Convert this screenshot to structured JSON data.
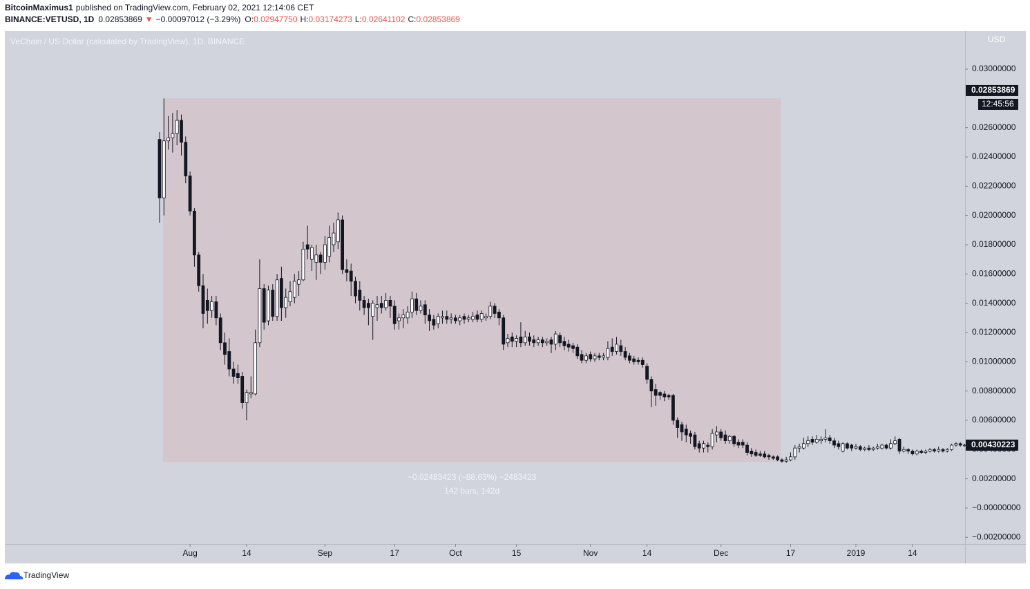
{
  "header": {
    "author": "BitcoinMaximus1",
    "published": "published on TradingView.com, February 02, 2021 12:14:06 CET",
    "symbol": "BINANCE:VETUSD, 1D",
    "last": "0.02853869",
    "arrow": "▼",
    "change": "−0.00097012 (−3.29%)",
    "ohlc": [
      {
        "label": "O:",
        "value": "0.02947750"
      },
      {
        "label": "H:",
        "value": "0.03174273"
      },
      {
        "label": "L:",
        "value": "0.02641102"
      },
      {
        "label": "C:",
        "value": "0.02853869"
      }
    ]
  },
  "chart_data": {
    "type": "candlestick",
    "title": "VeChain / US Dollar (calculated by TradingView), 1D, BINANCE",
    "currency": "USD",
    "categories": [
      null,
      null,
      null,
      null,
      null,
      null,
      null,
      "Aug",
      null,
      null,
      null,
      null,
      null,
      null,
      null,
      null,
      null,
      null,
      null,
      null,
      "14",
      null,
      null,
      null,
      null,
      null,
      null,
      null,
      null,
      null,
      null,
      null,
      null,
      null,
      null,
      null,
      null,
      null,
      "Sep",
      null,
      null,
      null,
      null,
      null,
      null,
      null,
      null,
      null,
      null,
      null,
      null,
      null,
      null,
      null,
      "17",
      null,
      null,
      null,
      null,
      null,
      null,
      null,
      null,
      null,
      null,
      null,
      null,
      null,
      "Oct",
      null,
      null,
      null,
      null,
      null,
      null,
      null,
      null,
      null,
      null,
      null,
      null,
      null,
      "15",
      null,
      null,
      null,
      null,
      null,
      null,
      null,
      null,
      null,
      null,
      null,
      null,
      null,
      null,
      null,
      null,
      "Nov",
      null,
      null,
      null,
      null,
      null,
      null,
      null,
      null,
      null,
      null,
      null,
      null,
      "14",
      null,
      null,
      null,
      null,
      null,
      null,
      null,
      null,
      null,
      null,
      null,
      null,
      null,
      null,
      null,
      null,
      "Dec",
      null,
      null,
      null,
      null,
      null,
      null,
      null,
      null,
      null,
      null,
      null,
      null,
      null,
      null,
      null,
      "17",
      null,
      null,
      null,
      null,
      null,
      null,
      null,
      null,
      null,
      null,
      null,
      null,
      null,
      null,
      "2019",
      null,
      null,
      null,
      null,
      null,
      null,
      null,
      null,
      null,
      null,
      null,
      null,
      "14",
      null,
      null,
      null,
      null,
      null,
      null,
      null,
      null,
      null,
      null,
      null,
      null,
      null
    ],
    "open": [
      0.0252,
      0.0212,
      0.0251,
      0.0253,
      0.0256,
      0.0265,
      0.025,
      0.0227,
      0.0203,
      0.0173,
      0.0152,
      0.0142,
      0.0135,
      0.0141,
      0.013,
      0.0113,
      0.0107,
      0.0095,
      0.0092,
      0.009,
      0.0072,
      0.0078,
      0.0078,
      0.0113,
      0.015,
      0.0128,
      0.0149,
      0.0131,
      0.0157,
      0.0137,
      0.0141,
      0.0144,
      0.0153,
      0.0156,
      0.018,
      0.017,
      0.0168,
      0.0173,
      0.0168,
      0.0172,
      0.018,
      0.0182,
      0.0197,
      0.0163,
      0.0162,
      0.0155,
      0.0149,
      0.0142,
      0.014,
      0.0131,
      0.0137,
      0.014,
      0.0137,
      0.0142,
      0.0138,
      0.0128,
      0.013,
      0.013,
      0.0134,
      0.0143,
      0.0135,
      0.0139,
      0.0132,
      0.0129,
      0.0126,
      0.013,
      0.0131,
      0.0129,
      0.013,
      0.0128,
      0.0131,
      0.0129,
      0.0129,
      0.0132,
      0.0129,
      0.013,
      0.0131,
      0.0138,
      0.0134,
      0.013,
      0.0113,
      0.0117,
      0.0114,
      0.0117,
      0.0113,
      0.0117,
      0.0115,
      0.0113,
      0.0115,
      0.0113,
      0.0115,
      0.0112,
      0.0118,
      0.0114,
      0.0112,
      0.0111,
      0.011,
      0.0105,
      0.0101,
      0.0105,
      0.0102,
      0.0104,
      0.0103,
      0.0103,
      0.011,
      0.0107,
      0.0111,
      0.0107,
      0.0104,
      0.0102,
      0.0101,
      0.0101,
      0.0097,
      0.0088,
      0.0081,
      0.0079,
      0.0078,
      0.0077,
      0.0077,
      0.006,
      0.0057,
      0.0054,
      0.0051,
      0.005,
      0.0044,
      0.0041,
      0.0043,
      0.0042,
      0.005,
      0.0052,
      0.005,
      0.0046,
      0.0049,
      0.0045,
      0.0045,
      0.0043,
      0.0039,
      0.0038,
      0.0037,
      0.0037,
      0.0036,
      0.0035,
      0.0035,
      0.0033,
      0.0032,
      0.0033,
      0.0035,
      0.0041,
      0.0041,
      0.0044,
      0.0047,
      0.0045,
      0.0046,
      0.0047,
      0.0048,
      0.0046,
      0.0044,
      0.0039,
      0.0044,
      0.0043,
      0.0041,
      0.0042,
      0.004,
      0.0041,
      0.004,
      0.0041,
      0.0041,
      0.0043,
      0.0041,
      0.0044,
      0.0047,
      0.0039,
      0.004,
      0.0039,
      0.0037,
      0.0039,
      0.0038,
      0.0039,
      0.004,
      0.0039,
      0.004,
      0.0039,
      0.004,
      0.0043,
      0.0044,
      0.0043,
      0.0043
    ],
    "high": [
      0.0257,
      0.028,
      0.0268,
      0.027,
      0.0272,
      0.0269,
      0.0254,
      0.023,
      0.0205,
      0.0175,
      0.016,
      0.015,
      0.0145,
      0.0145,
      0.0133,
      0.012,
      0.0116,
      0.01,
      0.0098,
      0.0093,
      0.0081,
      0.009,
      0.0122,
      0.017,
      0.0153,
      0.0152,
      0.0153,
      0.016,
      0.0165,
      0.015,
      0.0155,
      0.016,
      0.0162,
      0.0182,
      0.0193,
      0.018,
      0.018,
      0.0175,
      0.0186,
      0.0193,
      0.0195,
      0.0202,
      0.02,
      0.017,
      0.0167,
      0.0158,
      0.0155,
      0.0145,
      0.0143,
      0.0142,
      0.0145,
      0.0145,
      0.0147,
      0.0145,
      0.0142,
      0.0133,
      0.0136,
      0.0138,
      0.0148,
      0.0147,
      0.0142,
      0.0142,
      0.0136,
      0.0132,
      0.0133,
      0.0135,
      0.0135,
      0.0133,
      0.0132,
      0.0132,
      0.0133,
      0.0132,
      0.0134,
      0.0135,
      0.0135,
      0.0133,
      0.0141,
      0.014,
      0.0136,
      0.0132,
      0.0119,
      0.012,
      0.0118,
      0.0127,
      0.0121,
      0.012,
      0.0118,
      0.0117,
      0.0117,
      0.0116,
      0.0117,
      0.0121,
      0.012,
      0.0117,
      0.0115,
      0.0113,
      0.0112,
      0.0108,
      0.0106,
      0.0107,
      0.0106,
      0.0106,
      0.0106,
      0.0114,
      0.0116,
      0.0117,
      0.0115,
      0.011,
      0.0106,
      0.0104,
      0.0103,
      0.0103,
      0.0099,
      0.009,
      0.0085,
      0.008,
      0.008,
      0.0078,
      0.0078,
      0.0062,
      0.0059,
      0.0057,
      0.0053,
      0.0052,
      0.0046,
      0.0046,
      0.0045,
      0.0054,
      0.0056,
      0.0054,
      0.0053,
      0.005,
      0.005,
      0.0047,
      0.0047,
      0.0045,
      0.0041,
      0.004,
      0.0039,
      0.0039,
      0.0037,
      0.0036,
      0.0036,
      0.0034,
      0.0035,
      0.0038,
      0.0043,
      0.0044,
      0.0048,
      0.0049,
      0.0049,
      0.005,
      0.0049,
      0.0054,
      0.005,
      0.0048,
      0.0046,
      0.0045,
      0.0045,
      0.0044,
      0.0044,
      0.0043,
      0.0042,
      0.0043,
      0.0042,
      0.0044,
      0.0044,
      0.0044,
      0.0047,
      0.0049,
      0.0048,
      0.0042,
      0.0041,
      0.004,
      0.004,
      0.004,
      0.004,
      0.0041,
      0.0041,
      0.0042,
      0.0041,
      0.0041,
      0.0044,
      0.0045,
      0.0045,
      0.0044,
      0.0044
    ],
    "low": [
      0.0195,
      0.02,
      0.0245,
      0.0243,
      0.0248,
      0.0241,
      0.0222,
      0.02,
      0.0165,
      0.0148,
      0.0123,
      0.0126,
      0.013,
      0.0125,
      0.0108,
      0.0098,
      0.009,
      0.0085,
      0.0085,
      0.0068,
      0.006,
      0.0075,
      0.0077,
      0.011,
      0.0122,
      0.0125,
      0.0128,
      0.0128,
      0.0128,
      0.013,
      0.0138,
      0.014,
      0.0145,
      0.0155,
      0.017,
      0.0162,
      0.0156,
      0.016,
      0.0163,
      0.0168,
      0.0175,
      0.0177,
      0.016,
      0.0155,
      0.0145,
      0.014,
      0.0135,
      0.0132,
      0.0125,
      0.0115,
      0.0128,
      0.0133,
      0.0135,
      0.013,
      0.0122,
      0.0122,
      0.0123,
      0.0126,
      0.013,
      0.0132,
      0.0133,
      0.0126,
      0.0121,
      0.0122,
      0.0123,
      0.0126,
      0.0126,
      0.0126,
      0.0126,
      0.0125,
      0.0126,
      0.0127,
      0.0127,
      0.0127,
      0.0127,
      0.0128,
      0.0129,
      0.013,
      0.0125,
      0.0108,
      0.011,
      0.011,
      0.011,
      0.011,
      0.0111,
      0.0111,
      0.011,
      0.0111,
      0.011,
      0.0111,
      0.0106,
      0.0108,
      0.011,
      0.0108,
      0.0107,
      0.0106,
      0.0102,
      0.0099,
      0.0099,
      0.01,
      0.01,
      0.0101,
      0.0101,
      0.0101,
      0.0104,
      0.0105,
      0.0104,
      0.0101,
      0.0099,
      0.0098,
      0.0098,
      0.0096,
      0.0085,
      0.0069,
      0.007,
      0.0074,
      0.0073,
      0.0074,
      0.0057,
      0.0048,
      0.0046,
      0.0045,
      0.0044,
      0.004,
      0.0038,
      0.0038,
      0.0038,
      0.004,
      0.0045,
      0.0046,
      0.0044,
      0.0044,
      0.0042,
      0.0041,
      0.0041,
      0.0036,
      0.0035,
      0.0035,
      0.0035,
      0.0034,
      0.0033,
      0.0033,
      0.0032,
      0.0031,
      0.0031,
      0.0032,
      0.0033,
      0.0038,
      0.004,
      0.0042,
      0.0043,
      0.0044,
      0.0044,
      0.0045,
      0.0044,
      0.0041,
      0.004,
      0.0038,
      0.004,
      0.0039,
      0.004,
      0.0039,
      0.0039,
      0.0039,
      0.0039,
      0.004,
      0.004,
      0.004,
      0.004,
      0.0043,
      0.0037,
      0.0038,
      0.0037,
      0.0036,
      0.0036,
      0.0037,
      0.0037,
      0.0038,
      0.0038,
      0.0038,
      0.0038,
      0.0038,
      0.0039,
      0.0042,
      0.0042,
      0.0042,
      0.0042
    ],
    "close": [
      0.0212,
      0.0251,
      0.0253,
      0.0256,
      0.0265,
      0.025,
      0.0227,
      0.0203,
      0.0173,
      0.0152,
      0.0133,
      0.0135,
      0.0141,
      0.013,
      0.0113,
      0.0105,
      0.0095,
      0.009,
      0.0089,
      0.0072,
      0.0079,
      0.0079,
      0.0113,
      0.015,
      0.0127,
      0.0149,
      0.0131,
      0.0156,
      0.0137,
      0.0144,
      0.0148,
      0.0155,
      0.0156,
      0.0177,
      0.0177,
      0.0178,
      0.0173,
      0.0168,
      0.018,
      0.0185,
      0.0188,
      0.0197,
      0.0163,
      0.0161,
      0.0155,
      0.0145,
      0.0142,
      0.0137,
      0.0137,
      0.014,
      0.0139,
      0.0137,
      0.0142,
      0.0138,
      0.0126,
      0.013,
      0.0132,
      0.0134,
      0.0143,
      0.0135,
      0.0138,
      0.0132,
      0.0128,
      0.0125,
      0.0131,
      0.0131,
      0.0129,
      0.013,
      0.0128,
      0.013,
      0.0129,
      0.013,
      0.0131,
      0.0129,
      0.0133,
      0.0131,
      0.0138,
      0.0133,
      0.013,
      0.0112,
      0.0116,
      0.0114,
      0.0116,
      0.0113,
      0.0117,
      0.0114,
      0.0113,
      0.0115,
      0.0113,
      0.0114,
      0.0112,
      0.0119,
      0.0113,
      0.0111,
      0.011,
      0.0109,
      0.0104,
      0.0101,
      0.0104,
      0.0102,
      0.0104,
      0.0103,
      0.0104,
      0.0109,
      0.0107,
      0.0112,
      0.0107,
      0.0103,
      0.0101,
      0.01,
      0.01,
      0.0098,
      0.0088,
      0.008,
      0.0077,
      0.0077,
      0.0076,
      0.0076,
      0.006,
      0.0055,
      0.0052,
      0.005,
      0.0049,
      0.0042,
      0.0041,
      0.0044,
      0.0042,
      0.0051,
      0.0052,
      0.0048,
      0.0046,
      0.0049,
      0.0044,
      0.0043,
      0.0043,
      0.0038,
      0.0037,
      0.0036,
      0.0036,
      0.0035,
      0.0035,
      0.0034,
      0.0033,
      0.0032,
      0.0033,
      0.0035,
      0.0041,
      0.0042,
      0.0044,
      0.0046,
      0.0045,
      0.0047,
      0.0047,
      0.0048,
      0.0046,
      0.0043,
      0.0042,
      0.0044,
      0.0041,
      0.0041,
      0.0042,
      0.004,
      0.0041,
      0.004,
      0.0041,
      0.0042,
      0.0043,
      0.0041,
      0.0044,
      0.0046,
      0.0039,
      0.004,
      0.0039,
      0.0037,
      0.0039,
      0.0038,
      0.0039,
      0.004,
      0.0039,
      0.004,
      0.0039,
      0.004,
      0.0043,
      0.0044,
      0.0043,
      0.0043,
      0.00430223
    ],
    "up_color": "#ffffff",
    "down_color": "#131722",
    "ylim": [
      -0.00246,
      0.0326
    ],
    "yticks": [
      {
        "value": -0.002,
        "label": "−0.00200000"
      },
      {
        "value": 0,
        "label": "−0.00000000"
      },
      {
        "value": 0.002,
        "label": "0.00200000"
      },
      {
        "value": 0.004,
        "label": "0.00400000"
      },
      {
        "value": 0.006,
        "label": "0.00600000"
      },
      {
        "value": 0.008,
        "label": "0.00800000"
      },
      {
        "value": 0.01,
        "label": "0.01000000"
      },
      {
        "value": 0.012,
        "label": "0.01200000"
      },
      {
        "value": 0.014,
        "label": "0.01400000"
      },
      {
        "value": 0.016,
        "label": "0.01600000"
      },
      {
        "value": 0.018,
        "label": "0.01800000"
      },
      {
        "value": 0.02,
        "label": "0.02000000"
      },
      {
        "value": 0.022,
        "label": "0.02200000"
      },
      {
        "value": 0.024,
        "label": "0.02400000"
      },
      {
        "value": 0.026,
        "label": "0.02600000"
      },
      {
        "value": 0.03,
        "label": "0.03000000"
      }
    ],
    "grid": false,
    "last_price": 0.02853869,
    "countdown": "12:45:56",
    "current_price": 0.00430223,
    "measure": {
      "from": 0.028,
      "to": 0.00316577,
      "from_bar": 1,
      "to_bar": 143,
      "color": "#d3c6cd",
      "text": "−0.02483423 (−88.63%) −2483423",
      "bars_text": "142 bars, 142d"
    }
  },
  "footer": {
    "brand": "TradingView"
  }
}
